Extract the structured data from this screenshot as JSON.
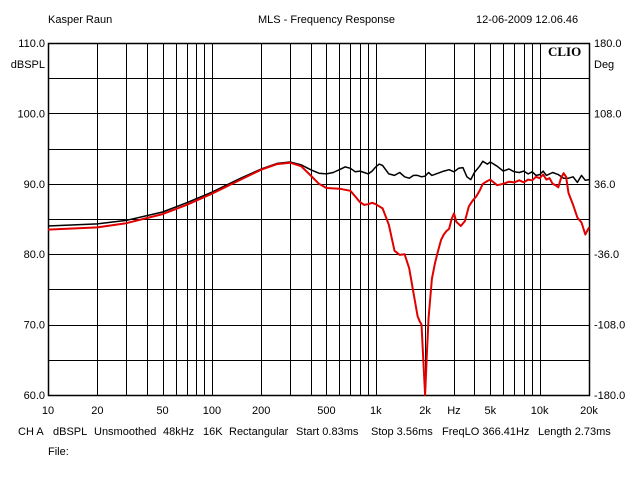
{
  "header": {
    "left": "Kasper Raun",
    "center": "MLS - Frequency Response",
    "right": "12-06-2009 12.06.46"
  },
  "logo": "CLIO",
  "chart_data": {
    "type": "line",
    "title": "MLS - Frequency Response",
    "xscale": "log",
    "xlim": [
      10,
      20000
    ],
    "ylim": [
      60,
      110
    ],
    "y2lim": [
      -180,
      180
    ],
    "ylabel": "dBSPL",
    "y2label": "Deg",
    "grid": true,
    "x_ticks": [
      {
        "v": 10,
        "label": "10"
      },
      {
        "v": 20,
        "label": "20"
      },
      {
        "v": 50,
        "label": "50"
      },
      {
        "v": 100,
        "label": "100"
      },
      {
        "v": 200,
        "label": "200"
      },
      {
        "v": 500,
        "label": "500"
      },
      {
        "v": 1000,
        "label": "1k"
      },
      {
        "v": 2000,
        "label": "2k"
      },
      {
        "v": 3000,
        "label": "Hz"
      },
      {
        "v": 5000,
        "label": "5k"
      },
      {
        "v": 10000,
        "label": "10k"
      },
      {
        "v": 20000,
        "label": "20k"
      }
    ],
    "y_ticks": [
      "60.0",
      "70.0",
      "80.0",
      "90.0",
      "100.0",
      "110.0"
    ],
    "y2_ticks": [
      "-180.0",
      "-108.0",
      "-36.0",
      "36.0",
      "108.0",
      "180.0"
    ],
    "series": [
      {
        "color": "#000000",
        "points": [
          [
            10,
            84.0
          ],
          [
            20,
            84.3
          ],
          [
            30,
            84.8
          ],
          [
            50,
            86.0
          ],
          [
            70,
            87.3
          ],
          [
            100,
            88.8
          ],
          [
            150,
            90.8
          ],
          [
            200,
            92.1
          ],
          [
            250,
            92.9
          ],
          [
            300,
            93.1
          ],
          [
            350,
            92.7
          ],
          [
            400,
            92.0
          ],
          [
            450,
            91.5
          ],
          [
            500,
            91.4
          ],
          [
            550,
            91.6
          ],
          [
            600,
            92.0
          ],
          [
            650,
            92.4
          ],
          [
            700,
            92.2
          ],
          [
            750,
            91.7
          ],
          [
            800,
            91.8
          ],
          [
            850,
            91.6
          ],
          [
            900,
            91.4
          ],
          [
            950,
            91.8
          ],
          [
            1000,
            92.4
          ],
          [
            1050,
            92.8
          ],
          [
            1100,
            92.6
          ],
          [
            1150,
            92.0
          ],
          [
            1200,
            91.4
          ],
          [
            1300,
            91.2
          ],
          [
            1400,
            91.6
          ],
          [
            1500,
            91.0
          ],
          [
            1600,
            90.8
          ],
          [
            1700,
            91.2
          ],
          [
            1800,
            91.2
          ],
          [
            1900,
            91.0
          ],
          [
            2000,
            91.1
          ],
          [
            2100,
            91.6
          ],
          [
            2200,
            91.2
          ],
          [
            2400,
            91.5
          ],
          [
            2600,
            91.8
          ],
          [
            2800,
            92.0
          ],
          [
            3000,
            91.7
          ],
          [
            3200,
            92.2
          ],
          [
            3400,
            92.3
          ],
          [
            3600,
            91.0
          ],
          [
            3800,
            90.6
          ],
          [
            4000,
            91.6
          ],
          [
            4300,
            92.5
          ],
          [
            4500,
            93.2
          ],
          [
            4800,
            92.8
          ],
          [
            5000,
            93.1
          ],
          [
            5500,
            92.5
          ],
          [
            6000,
            91.8
          ],
          [
            6500,
            92.1
          ],
          [
            7000,
            91.7
          ],
          [
            7500,
            91.6
          ],
          [
            8000,
            91.8
          ],
          [
            8500,
            91.4
          ],
          [
            9000,
            91.7
          ],
          [
            9500,
            91.2
          ],
          [
            10000,
            91.3
          ],
          [
            10500,
            91.8
          ],
          [
            11000,
            91.2
          ],
          [
            12000,
            91.6
          ],
          [
            13000,
            91.3
          ],
          [
            14000,
            90.8
          ],
          [
            15000,
            90.8
          ],
          [
            16000,
            91.0
          ],
          [
            17000,
            90.2
          ],
          [
            18000,
            91.2
          ],
          [
            19000,
            90.5
          ],
          [
            20000,
            90.6
          ]
        ]
      },
      {
        "color": "#e00000",
        "points": [
          [
            10,
            83.5
          ],
          [
            20,
            83.8
          ],
          [
            30,
            84.4
          ],
          [
            50,
            85.7
          ],
          [
            70,
            87.0
          ],
          [
            100,
            88.6
          ],
          [
            150,
            90.6
          ],
          [
            200,
            92.0
          ],
          [
            250,
            92.8
          ],
          [
            300,
            93.0
          ],
          [
            350,
            92.5
          ],
          [
            400,
            91.2
          ],
          [
            450,
            90.0
          ],
          [
            500,
            89.4
          ],
          [
            600,
            89.3
          ],
          [
            700,
            89.0
          ],
          [
            750,
            88.2
          ],
          [
            800,
            87.4
          ],
          [
            850,
            87.0
          ],
          [
            900,
            87.1
          ],
          [
            950,
            87.3
          ],
          [
            1000,
            87.1
          ],
          [
            1100,
            86.5
          ],
          [
            1200,
            84.2
          ],
          [
            1300,
            80.5
          ],
          [
            1400,
            79.9
          ],
          [
            1500,
            80.0
          ],
          [
            1600,
            78.0
          ],
          [
            1700,
            74.5
          ],
          [
            1800,
            71.2
          ],
          [
            1850,
            70.5
          ],
          [
            1900,
            70.0
          ],
          [
            1950,
            65.0
          ],
          [
            2000,
            60.0
          ],
          [
            2050,
            66.0
          ],
          [
            2100,
            71.0
          ],
          [
            2200,
            76.5
          ],
          [
            2300,
            78.8
          ],
          [
            2400,
            80.5
          ],
          [
            2500,
            82.0
          ],
          [
            2600,
            82.8
          ],
          [
            2700,
            83.3
          ],
          [
            2800,
            83.6
          ],
          [
            2900,
            85.0
          ],
          [
            3000,
            85.8
          ],
          [
            3100,
            84.6
          ],
          [
            3300,
            84.0
          ],
          [
            3500,
            84.7
          ],
          [
            3700,
            86.8
          ],
          [
            3900,
            87.6
          ],
          [
            4100,
            88.2
          ],
          [
            4300,
            89.0
          ],
          [
            4500,
            90.0
          ],
          [
            4800,
            90.4
          ],
          [
            5000,
            90.6
          ],
          [
            5500,
            89.8
          ],
          [
            6000,
            90.0
          ],
          [
            6500,
            90.3
          ],
          [
            7000,
            90.2
          ],
          [
            7500,
            90.5
          ],
          [
            8000,
            90.2
          ],
          [
            8500,
            90.6
          ],
          [
            9000,
            90.5
          ],
          [
            9500,
            91.0
          ],
          [
            10000,
            90.8
          ],
          [
            10500,
            91.3
          ],
          [
            11000,
            90.6
          ],
          [
            11500,
            90.8
          ],
          [
            12000,
            90.0
          ],
          [
            12500,
            89.8
          ],
          [
            13000,
            89.5
          ],
          [
            13500,
            90.8
          ],
          [
            14000,
            91.5
          ],
          [
            14500,
            91.0
          ],
          [
            15000,
            88.7
          ],
          [
            16000,
            87.0
          ],
          [
            17000,
            85.2
          ],
          [
            18000,
            84.5
          ],
          [
            19000,
            82.8
          ],
          [
            20000,
            83.8
          ]
        ]
      }
    ]
  },
  "footer": {
    "ch": "CH A",
    "unit": "dBSPL",
    "smoothing": "Unsmoothed",
    "rate": "48kHz",
    "size": "16K",
    "window": "Rectangular",
    "start": "Start 0.83ms",
    "stop": "Stop 3.56ms",
    "freqlo": "FreqLO 366.41Hz",
    "length": "Length 2.73ms",
    "file": "File:"
  }
}
